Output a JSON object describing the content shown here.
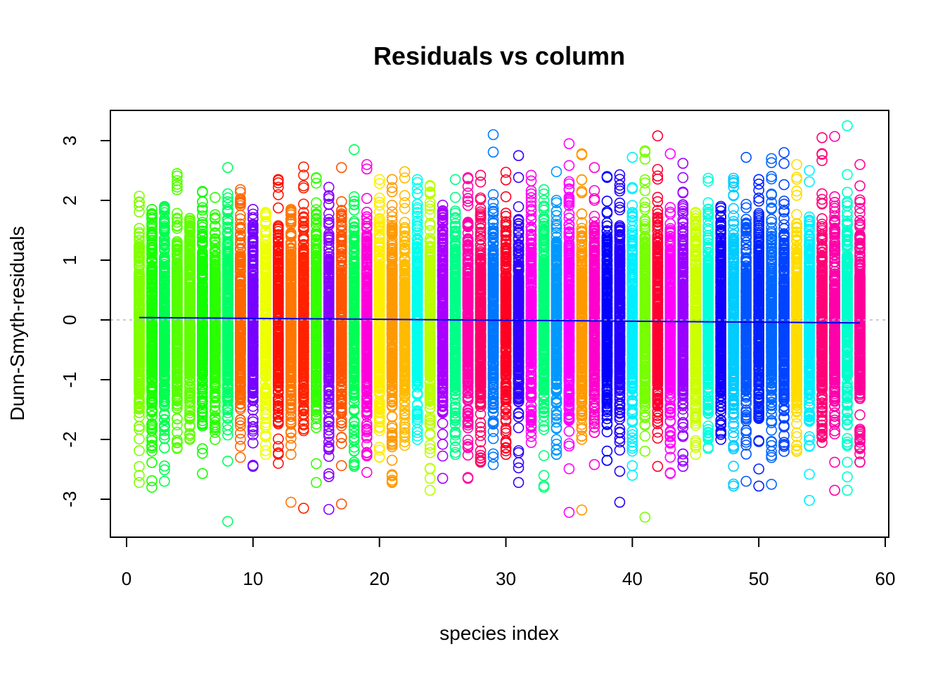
{
  "chart_data": {
    "type": "scatter",
    "title": "Residuals vs column",
    "xlabel": "species index",
    "ylabel": "Dunn-Smyth-residuals",
    "xlim": [
      0,
      60
    ],
    "ylim": [
      -3.5,
      3.5
    ],
    "xticks": [
      "0",
      "10",
      "20",
      "30",
      "40",
      "50",
      "60"
    ],
    "yticks": [
      "-3",
      "-2",
      "-1",
      "0",
      "1",
      "2",
      "3"
    ],
    "n_species": 58,
    "marker": "open-circle",
    "reference_line": {
      "y": 0,
      "style": "dotted",
      "color": "#bbbbbb"
    },
    "trend_line": {
      "x": [
        1,
        58
      ],
      "y": [
        0.04,
        -0.05
      ],
      "color": "#0000ee"
    },
    "species_colors": [
      "#80ff00",
      "#19ff00",
      "#00ff4d",
      "#55ff00",
      "#5fff00",
      "#11ff00",
      "#2aff00",
      "#00ff66",
      "#ff6600",
      "#7700ff",
      "#eeff00",
      "#ff1100",
      "#ff7700",
      "#ff2200",
      "#33ff00",
      "#8800ff",
      "#ff5500",
      "#00ff55",
      "#ff00dd",
      "#ffee00",
      "#ff9900",
      "#ffbb00",
      "#00ffee",
      "#bbff00",
      "#aa00ff",
      "#00ff88",
      "#ff00aa",
      "#ff0066",
      "#0077ff",
      "#ff0022",
      "#3300ff",
      "#ff00ee",
      "#00ff77",
      "#0099ff",
      "#ff00ff",
      "#ff9900",
      "#ff00cc",
      "#0000ff",
      "#2200ff",
      "#00eeff",
      "#77ff00",
      "#ff0033",
      "#ff00ff",
      "#9900ff",
      "#ccff00",
      "#00ffdd",
      "#1100ff",
      "#00ccff",
      "#0055ff",
      "#0022ff",
      "#0066ff",
      "#0044ff",
      "#ffdd00",
      "#00eeff",
      "#ff0077",
      "#ff00aa",
      "#00ffcc",
      "#ff0099"
    ],
    "species_ranges": [
      [
        -2.72,
        2.07
      ],
      [
        -2.8,
        1.85
      ],
      [
        -2.7,
        1.9
      ],
      [
        -2.15,
        2.45
      ],
      [
        -2.0,
        1.7
      ],
      [
        -2.57,
        2.15
      ],
      [
        -2.0,
        2.05
      ],
      [
        -3.37,
        2.55
      ],
      [
        -2.3,
        2.18
      ],
      [
        -2.45,
        1.85
      ],
      [
        -2.25,
        1.8
      ],
      [
        -2.4,
        2.35
      ],
      [
        -3.05,
        1.85
      ],
      [
        -3.15,
        2.56
      ],
      [
        -2.72,
        2.38
      ],
      [
        -3.17,
        2.22
      ],
      [
        -3.08,
        2.55
      ],
      [
        -2.45,
        2.85
      ],
      [
        -2.55,
        2.6
      ],
      [
        -2.3,
        2.35
      ],
      [
        -2.72,
        2.35
      ],
      [
        -2.1,
        2.48
      ],
      [
        -2.0,
        2.35
      ],
      [
        -2.85,
        2.25
      ],
      [
        -2.65,
        1.92
      ],
      [
        -2.25,
        2.35
      ],
      [
        -2.65,
        2.38
      ],
      [
        -2.38,
        2.42
      ],
      [
        -2.42,
        3.1
      ],
      [
        -2.25,
        2.47
      ],
      [
        -2.72,
        2.75
      ],
      [
        -2.05,
        2.42
      ],
      [
        -2.8,
        2.18
      ],
      [
        -2.25,
        2.48
      ],
      [
        -3.22,
        2.95
      ],
      [
        -3.18,
        2.78
      ],
      [
        -2.42,
        2.55
      ],
      [
        -2.35,
        2.4
      ],
      [
        -3.05,
        2.43
      ],
      [
        -2.6,
        2.72
      ],
      [
        -3.3,
        2.83
      ],
      [
        -2.45,
        3.08
      ],
      [
        -2.57,
        2.78
      ],
      [
        -2.45,
        2.62
      ],
      [
        -2.25,
        1.8
      ],
      [
        -2.15,
        2.37
      ],
      [
        -2.0,
        1.9
      ],
      [
        -2.78,
        2.37
      ],
      [
        -2.7,
        2.72
      ],
      [
        -2.78,
        2.35
      ],
      [
        -2.75,
        2.7
      ],
      [
        -2.2,
        2.8
      ],
      [
        -2.2,
        2.6
      ],
      [
        -3.02,
        2.5
      ],
      [
        -2.05,
        3.05
      ],
      [
        -2.85,
        3.07
      ],
      [
        -2.85,
        3.25
      ],
      [
        -2.38,
        2.6
      ]
    ],
    "points_per_species": 320,
    "grid": false,
    "legend": "none"
  }
}
